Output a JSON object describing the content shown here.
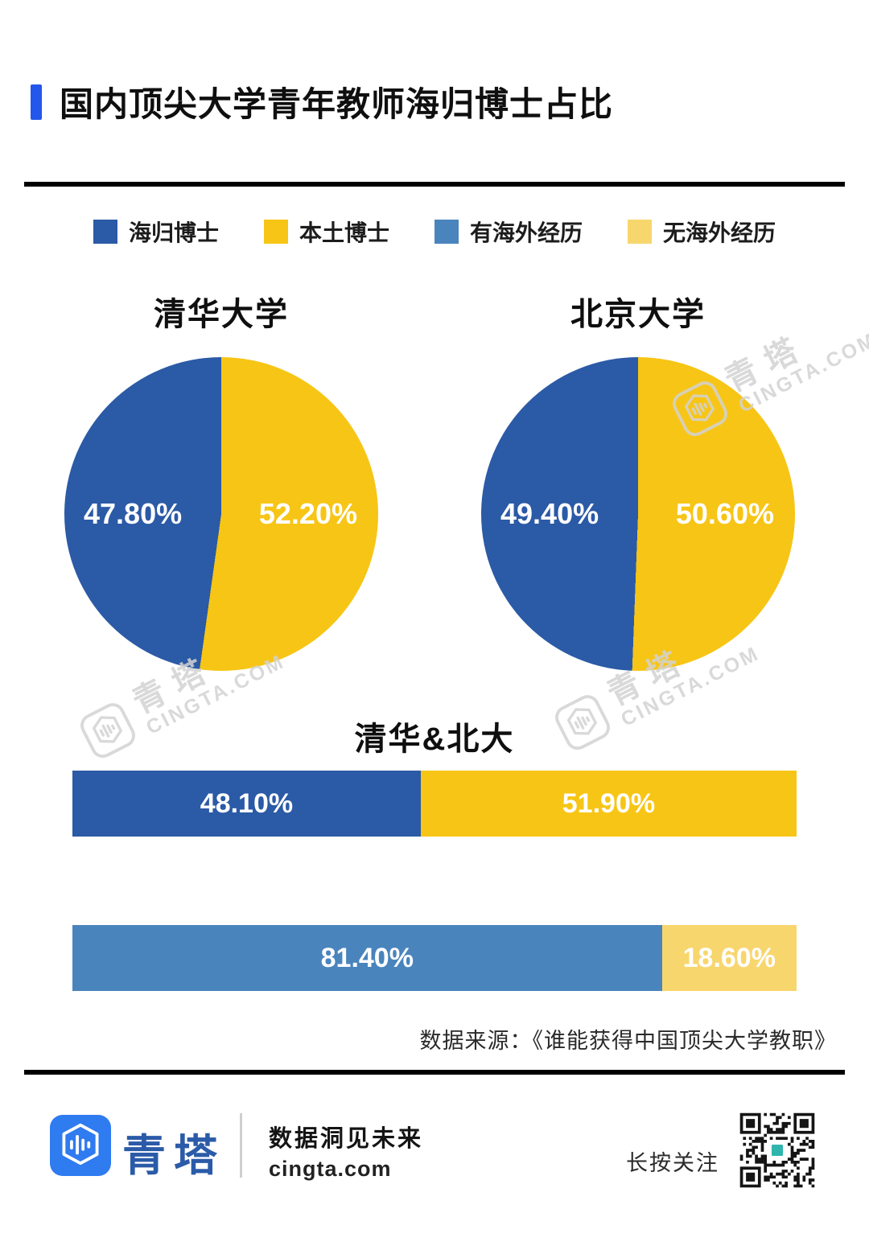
{
  "header": {
    "title": "国内顶尖大学青年教师海归博士占比"
  },
  "legend": [
    {
      "label": "海归博士",
      "color": "#2B5AA6"
    },
    {
      "label": "本土博士",
      "color": "#F7C515"
    },
    {
      "label": "有海外经历",
      "color": "#4A84BD"
    },
    {
      "label": "无海外经历",
      "color": "#F8D66E"
    }
  ],
  "chart_data": [
    {
      "type": "pie",
      "title": "清华大学",
      "slices": [
        {
          "label": "海归博士",
          "value": 47.8,
          "display": "47.80%",
          "color": "#2B5AA6"
        },
        {
          "label": "本土博士",
          "value": 52.2,
          "display": "52.20%",
          "color": "#F7C515"
        }
      ]
    },
    {
      "type": "pie",
      "title": "北京大学",
      "slices": [
        {
          "label": "海归博士",
          "value": 49.4,
          "display": "49.40%",
          "color": "#2B5AA6"
        },
        {
          "label": "本土博士",
          "value": 50.6,
          "display": "50.60%",
          "color": "#F7C515"
        }
      ]
    },
    {
      "type": "bar",
      "title": "清华&北大",
      "bars": [
        {
          "segments": [
            {
              "label": "海归博士",
              "value": 48.1,
              "display": "48.10%",
              "color": "#2B5AA6"
            },
            {
              "label": "本土博士",
              "value": 51.9,
              "display": "51.90%",
              "color": "#F7C515"
            }
          ]
        },
        {
          "segments": [
            {
              "label": "有海外经历",
              "value": 81.4,
              "display": "81.40%",
              "color": "#4A84BD"
            },
            {
              "label": "无海外经历",
              "value": 18.6,
              "display": "18.60%",
              "color": "#F8D66E"
            }
          ]
        }
      ]
    }
  ],
  "source": "数据来源：《谁能获得中国顶尖大学教职》",
  "watermark": {
    "brand": "青塔",
    "domain": "CINGTA.COM"
  },
  "footer": {
    "brand": "青塔",
    "tagline": "数据洞见未来",
    "site": "cingta.com",
    "qr_hint": "长按关注"
  },
  "accent_colors": {
    "title_marker": "#2356EB",
    "logo_blue": "#2F7BF0",
    "qr_center": "#2FB5AE"
  }
}
